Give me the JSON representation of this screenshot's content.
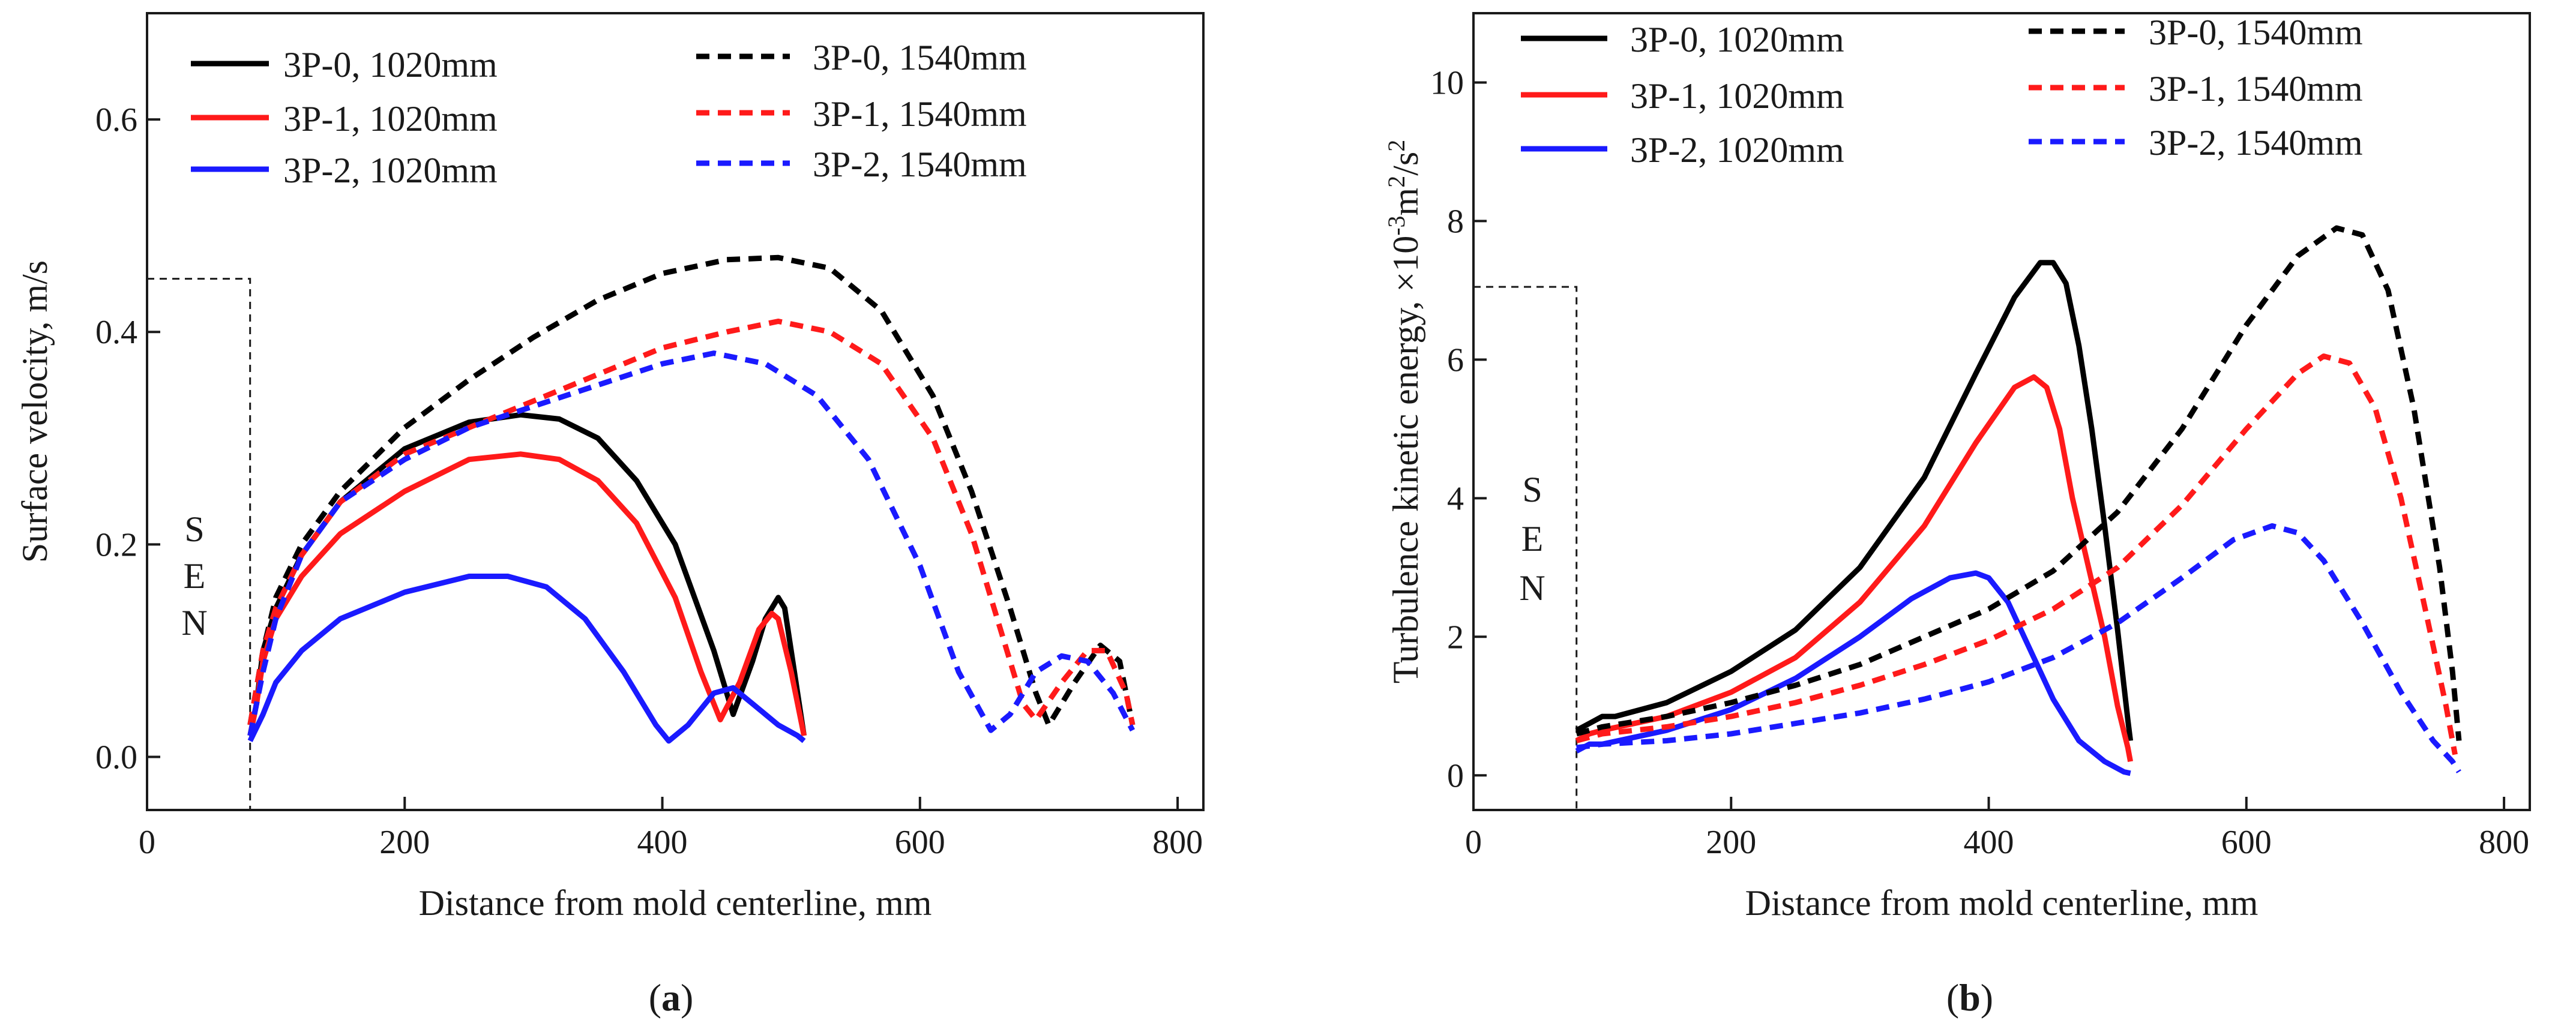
{
  "colors": {
    "black": "#000000",
    "red": "#ff1a1a",
    "blue": "#1a1aff"
  },
  "chart_data": [
    {
      "id": "a",
      "type": "line",
      "panel_label": "a",
      "xlabel": "Distance from mold centerline, mm",
      "ylabel": "Surface  velocity, m/s",
      "xlim": [
        0,
        820
      ],
      "ylim": [
        -0.05,
        0.7
      ],
      "xticks": [
        0,
        200,
        400,
        600,
        800
      ],
      "yticks": [
        0.0,
        0.2,
        0.4,
        0.6
      ],
      "xtick_labels": [
        "0",
        "200",
        "400",
        "600",
        "800"
      ],
      "ytick_labels": [
        "0.0",
        "0.2",
        "0.4",
        "0.6"
      ],
      "sen": {
        "letters": [
          "S",
          "E",
          "N"
        ],
        "x": 80,
        "top": 0.45
      },
      "series": [
        {
          "name": "3P-0, 1020mm",
          "color": "black",
          "dash": false,
          "x": [
            80,
            85,
            90,
            100,
            120,
            150,
            200,
            250,
            290,
            320,
            350,
            380,
            410,
            440,
            455,
            470,
            480,
            490,
            495,
            500,
            505,
            510
          ],
          "y": [
            0.02,
            0.05,
            0.1,
            0.14,
            0.19,
            0.24,
            0.29,
            0.315,
            0.322,
            0.318,
            0.3,
            0.26,
            0.2,
            0.1,
            0.04,
            0.09,
            0.13,
            0.15,
            0.14,
            0.1,
            0.06,
            0.02
          ]
        },
        {
          "name": "3P-1, 1020mm",
          "color": "red",
          "dash": false,
          "x": [
            80,
            85,
            90,
            100,
            120,
            150,
            200,
            250,
            290,
            320,
            350,
            380,
            410,
            430,
            445,
            460,
            475,
            485,
            490,
            500,
            510
          ],
          "y": [
            0.02,
            0.05,
            0.09,
            0.13,
            0.17,
            0.21,
            0.25,
            0.28,
            0.285,
            0.28,
            0.26,
            0.22,
            0.15,
            0.08,
            0.035,
            0.07,
            0.12,
            0.135,
            0.13,
            0.08,
            0.02
          ]
        },
        {
          "name": "3P-2, 1020mm",
          "color": "blue",
          "dash": false,
          "x": [
            80,
            90,
            100,
            120,
            150,
            200,
            250,
            280,
            310,
            340,
            370,
            395,
            405,
            420,
            440,
            455,
            470,
            490,
            505,
            510
          ],
          "y": [
            0.015,
            0.04,
            0.07,
            0.1,
            0.13,
            0.155,
            0.17,
            0.17,
            0.16,
            0.13,
            0.08,
            0.03,
            0.015,
            0.03,
            0.06,
            0.065,
            0.05,
            0.03,
            0.02,
            0.015
          ]
        },
        {
          "name": "3P-0, 1540mm",
          "color": "black",
          "dash": true,
          "x": [
            80,
            90,
            100,
            120,
            150,
            200,
            250,
            300,
            350,
            400,
            450,
            490,
            530,
            570,
            610,
            640,
            670,
            690,
            700,
            720,
            740,
            755,
            765
          ],
          "y": [
            0.03,
            0.1,
            0.15,
            0.2,
            0.25,
            0.31,
            0.355,
            0.395,
            0.43,
            0.455,
            0.468,
            0.47,
            0.46,
            0.42,
            0.34,
            0.25,
            0.14,
            0.06,
            0.03,
            0.07,
            0.105,
            0.09,
            0.03
          ]
        },
        {
          "name": "3P-1, 1540mm",
          "color": "red",
          "dash": true,
          "x": [
            80,
            90,
            100,
            120,
            150,
            200,
            250,
            300,
            350,
            400,
            450,
            490,
            530,
            570,
            610,
            640,
            665,
            680,
            690,
            710,
            730,
            745,
            760,
            765
          ],
          "y": [
            0.03,
            0.1,
            0.14,
            0.19,
            0.24,
            0.285,
            0.31,
            0.335,
            0.36,
            0.385,
            0.4,
            0.41,
            0.4,
            0.37,
            0.3,
            0.21,
            0.11,
            0.05,
            0.035,
            0.07,
            0.1,
            0.1,
            0.06,
            0.03
          ]
        },
        {
          "name": "3P-2, 1540mm",
          "color": "blue",
          "dash": true,
          "x": [
            80,
            90,
            100,
            120,
            150,
            200,
            250,
            300,
            350,
            400,
            440,
            480,
            520,
            560,
            600,
            630,
            655,
            670,
            690,
            710,
            730,
            750,
            765
          ],
          "y": [
            0.02,
            0.08,
            0.13,
            0.19,
            0.24,
            0.28,
            0.31,
            0.33,
            0.35,
            0.37,
            0.38,
            0.37,
            0.34,
            0.28,
            0.18,
            0.08,
            0.025,
            0.04,
            0.08,
            0.095,
            0.09,
            0.06,
            0.025
          ]
        }
      ]
    },
    {
      "id": "b",
      "type": "line",
      "panel_label": "b",
      "xlabel": "Distance from mold centerline, mm",
      "ylabel_main": "Turbulence kinetic energy, ×10",
      "ylabel_exp1": "-3",
      "ylabel_unit": "m",
      "ylabel_exp2": "2",
      "ylabel_unit2": "/s",
      "ylabel_exp3": "2",
      "xlim": [
        0,
        820
      ],
      "ylim": [
        -0.5,
        11
      ],
      "xticks": [
        0,
        200,
        400,
        600,
        800
      ],
      "yticks": [
        0,
        2,
        4,
        6,
        8,
        10
      ],
      "xtick_labels": [
        "0",
        "200",
        "400",
        "600",
        "800"
      ],
      "ytick_labels": [
        "0",
        "2",
        "4",
        "6",
        "8",
        "10"
      ],
      "sen": {
        "letters": [
          "S",
          "E",
          "N"
        ],
        "x": 80,
        "top": 7.05
      },
      "series": [
        {
          "name": "3P-0, 1020mm",
          "color": "black",
          "dash": false,
          "x": [
            80,
            90,
            100,
            110,
            150,
            200,
            250,
            300,
            350,
            390,
            420,
            440,
            450,
            460,
            470,
            480,
            490,
            500,
            508,
            510
          ],
          "y": [
            0.65,
            0.75,
            0.85,
            0.85,
            1.05,
            1.5,
            2.1,
            3.0,
            4.3,
            5.8,
            6.9,
            7.4,
            7.4,
            7.1,
            6.2,
            5.0,
            3.6,
            2.1,
            0.8,
            0.5
          ]
        },
        {
          "name": "3P-1, 1020mm",
          "color": "red",
          "dash": false,
          "x": [
            80,
            90,
            100,
            150,
            200,
            250,
            300,
            350,
            390,
            420,
            435,
            445,
            455,
            465,
            480,
            490,
            500,
            508,
            510
          ],
          "y": [
            0.5,
            0.6,
            0.65,
            0.85,
            1.2,
            1.7,
            2.5,
            3.6,
            4.8,
            5.6,
            5.75,
            5.6,
            5.0,
            4.0,
            2.8,
            2.0,
            1.0,
            0.4,
            0.2
          ]
        },
        {
          "name": "3P-2, 1020mm",
          "color": "blue",
          "dash": false,
          "x": [
            80,
            90,
            100,
            150,
            200,
            250,
            300,
            340,
            370,
            390,
            400,
            415,
            430,
            450,
            470,
            490,
            505,
            510
          ],
          "y": [
            0.35,
            0.45,
            0.45,
            0.65,
            0.95,
            1.4,
            2.0,
            2.55,
            2.85,
            2.92,
            2.85,
            2.5,
            1.9,
            1.1,
            0.5,
            0.2,
            0.05,
            0.03
          ]
        },
        {
          "name": "3P-0, 1540mm",
          "color": "black",
          "dash": true,
          "x": [
            80,
            100,
            150,
            200,
            250,
            300,
            350,
            400,
            450,
            500,
            550,
            600,
            640,
            670,
            690,
            710,
            730,
            750,
            760,
            765
          ],
          "y": [
            0.6,
            0.7,
            0.85,
            1.05,
            1.3,
            1.6,
            2.0,
            2.4,
            2.95,
            3.8,
            5.0,
            6.5,
            7.5,
            7.9,
            7.8,
            7.0,
            5.3,
            3.0,
            1.5,
            0.5
          ]
        },
        {
          "name": "3P-1, 1540mm",
          "color": "red",
          "dash": true,
          "x": [
            80,
            100,
            150,
            200,
            250,
            300,
            350,
            400,
            450,
            500,
            550,
            600,
            640,
            660,
            680,
            700,
            720,
            740,
            755,
            762
          ],
          "y": [
            0.5,
            0.6,
            0.7,
            0.85,
            1.05,
            1.3,
            1.6,
            1.95,
            2.4,
            3.0,
            3.9,
            5.0,
            5.8,
            6.05,
            5.95,
            5.3,
            4.0,
            2.3,
            1.0,
            0.3
          ]
        },
        {
          "name": "3P-2, 1540mm",
          "color": "blue",
          "dash": true,
          "x": [
            80,
            100,
            150,
            200,
            250,
            300,
            350,
            400,
            450,
            500,
            550,
            590,
            620,
            640,
            660,
            690,
            720,
            745,
            760,
            765
          ],
          "y": [
            0.4,
            0.45,
            0.5,
            0.6,
            0.75,
            0.9,
            1.1,
            1.35,
            1.7,
            2.2,
            2.85,
            3.4,
            3.6,
            3.5,
            3.1,
            2.2,
            1.2,
            0.5,
            0.2,
            0.05
          ]
        }
      ]
    }
  ]
}
